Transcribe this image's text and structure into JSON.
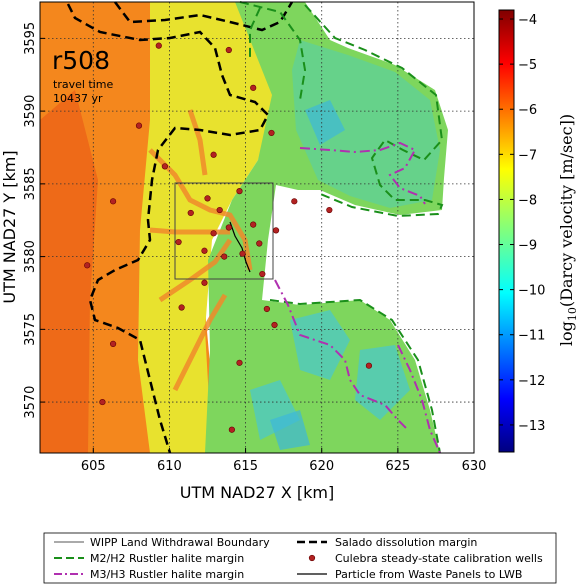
{
  "figure": {
    "realization": "r508",
    "travel_time_label": "travel time",
    "travel_time_value": "10437 yr"
  },
  "axes": {
    "xlabel": "UTM NAD27 X [km]",
    "ylabel": "UTM NAD27 Y [km]",
    "xlim": [
      601.5,
      630
    ],
    "ylim": [
      3566.5,
      3597.5
    ],
    "xticks": [
      "605",
      "610",
      "615",
      "620",
      "625",
      "630"
    ],
    "xtick_values": [
      605,
      610,
      615,
      620,
      625,
      630
    ],
    "yticks": [
      "3570",
      "3575",
      "3580",
      "3585",
      "3590",
      "3595"
    ],
    "ytick_values": [
      3570,
      3575,
      3580,
      3585,
      3590,
      3595
    ],
    "grid": true
  },
  "colorbar": {
    "label_prefix": "log",
    "label_sub": "10",
    "label_suffix": "(Darcy velocity [m/sec])",
    "ticks": [
      "−4",
      "−5",
      "−6",
      "−7",
      "−8",
      "−9",
      "−10",
      "−11",
      "−12",
      "−13"
    ],
    "tick_values": [
      -4,
      -5,
      -6,
      -7,
      -8,
      -9,
      -10,
      -11,
      -12,
      -13
    ],
    "range": [
      -13.6,
      -3.8
    ],
    "colormap": "jet"
  },
  "legend": {
    "items": [
      {
        "label": "WIPP Land Withdrawal Boundary",
        "style": "thin-solid",
        "color": "#555555"
      },
      {
        "label": "Salado dissolution margin",
        "style": "thick-dashed",
        "color": "#000000"
      },
      {
        "label": "M2/H2 Rustler halite margin",
        "style": "dashed",
        "color": "#1a8f1a"
      },
      {
        "label": "Culebra steady-state calibration wells",
        "style": "dot",
        "color": "#b22222"
      },
      {
        "label": "M3/H3 Rustler halite margin",
        "style": "dash-dot",
        "color": "#b030b0"
      },
      {
        "label": "Particle from Waste Panels to LWB",
        "style": "solid",
        "color": "#000000"
      }
    ]
  },
  "chart_data": {
    "type": "map",
    "title": "r508",
    "annotation": [
      "travel time",
      "10437 yr"
    ],
    "xlabel": "UTM NAD27 X [km]",
    "ylabel": "UTM NAD27 Y [km]",
    "xlim": [
      601.5,
      630
    ],
    "ylim": [
      3566.5,
      3597.5
    ],
    "colorbar_range": [
      -13.6,
      -3.8
    ],
    "wipp_boundary": {
      "x": [
        610.6,
        616.9
      ],
      "y": [
        3578.7,
        3585.1
      ]
    },
    "wells": [
      {
        "x": 609.3,
        "y": 3594.5
      },
      {
        "x": 613.9,
        "y": 3594.2
      },
      {
        "x": 615.5,
        "y": 3591.6
      },
      {
        "x": 608.0,
        "y": 3589.0
      },
      {
        "x": 612.9,
        "y": 3587.0
      },
      {
        "x": 609.7,
        "y": 3586.2
      },
      {
        "x": 616.7,
        "y": 3588.5
      },
      {
        "x": 606.3,
        "y": 3583.8
      },
      {
        "x": 612.5,
        "y": 3584.0
      },
      {
        "x": 613.3,
        "y": 3583.2
      },
      {
        "x": 614.6,
        "y": 3584.5
      },
      {
        "x": 611.4,
        "y": 3583.0
      },
      {
        "x": 613.9,
        "y": 3582.0
      },
      {
        "x": 612.9,
        "y": 3581.6
      },
      {
        "x": 615.5,
        "y": 3582.2
      },
      {
        "x": 610.6,
        "y": 3581.0
      },
      {
        "x": 612.3,
        "y": 3580.4
      },
      {
        "x": 613.6,
        "y": 3580.0
      },
      {
        "x": 614.8,
        "y": 3580.2
      },
      {
        "x": 615.9,
        "y": 3580.9
      },
      {
        "x": 617.0,
        "y": 3581.8
      },
      {
        "x": 618.2,
        "y": 3583.8
      },
      {
        "x": 620.5,
        "y": 3583.2
      },
      {
        "x": 604.6,
        "y": 3579.4
      },
      {
        "x": 612.3,
        "y": 3578.2
      },
      {
        "x": 610.8,
        "y": 3576.5
      },
      {
        "x": 616.1,
        "y": 3578.8
      },
      {
        "x": 616.4,
        "y": 3576.4
      },
      {
        "x": 616.9,
        "y": 3575.3
      },
      {
        "x": 606.3,
        "y": 3574.0
      },
      {
        "x": 614.6,
        "y": 3572.7
      },
      {
        "x": 623.1,
        "y": 3572.5
      },
      {
        "x": 605.6,
        "y": 3570.0
      },
      {
        "x": 614.1,
        "y": 3568.1
      }
    ]
  }
}
